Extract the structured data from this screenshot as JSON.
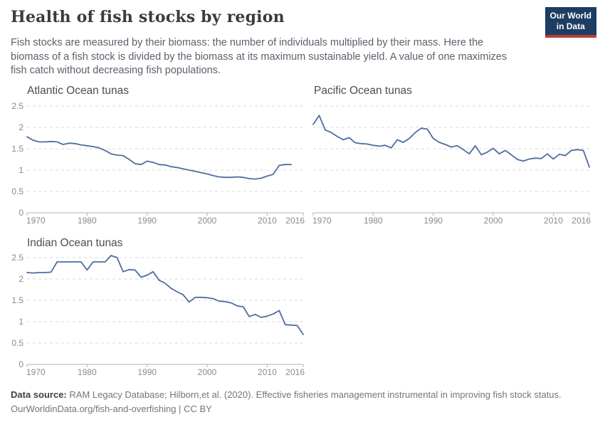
{
  "header": {
    "title": "Health of fish stocks by region",
    "subtitle_lines": [
      "Fish stocks are measured by their biomass: the number of individuals multiplied by their mass. Here the",
      "biomass of a fish stock is divided by the biomass at its maximum sustainable yield. A value of one maximizes",
      "fish catch without decreasing fish populations."
    ],
    "logo": {
      "lines": [
        "Our World",
        "in Data"
      ],
      "bg_color": "#1d3d63",
      "accent_color": "#bc3b31"
    }
  },
  "footer": {
    "source_label": "Data source:",
    "source_text": "RAM Legacy Database; Hilborn,et al. (2020). Effective fisheries management instrumental in improving fish stock status.",
    "url": "OurWorldinData.org/fish-and-overfishing",
    "divider": "|",
    "license": "CC BY"
  },
  "chart_data": [
    {
      "type": "line",
      "title": "Atlantic Ocean tunas",
      "xlabel": "",
      "ylabel": "",
      "xlim": [
        1970,
        2016
      ],
      "ylim": [
        0,
        2.5
      ],
      "x_ticks": [
        1970,
        1980,
        1990,
        2000,
        2010,
        2016
      ],
      "y_ticks": [
        0,
        0.5,
        1,
        1.5,
        2,
        2.5
      ],
      "show_y_labels": true,
      "grid": true,
      "line_color": "#4d6e9f",
      "x": [
        1970,
        1971,
        1972,
        1973,
        1974,
        1975,
        1976,
        1977,
        1978,
        1979,
        1980,
        1981,
        1982,
        1983,
        1984,
        1985,
        1986,
        1987,
        1988,
        1989,
        1990,
        1991,
        1992,
        1993,
        1994,
        1995,
        1996,
        1997,
        1998,
        1999,
        2000,
        2001,
        2002,
        2003,
        2004,
        2005,
        2006,
        2007,
        2008,
        2009,
        2010,
        2011,
        2012,
        2013,
        2014
      ],
      "values": [
        1.78,
        1.7,
        1.66,
        1.66,
        1.67,
        1.66,
        1.6,
        1.63,
        1.62,
        1.59,
        1.57,
        1.55,
        1.52,
        1.46,
        1.38,
        1.35,
        1.34,
        1.25,
        1.15,
        1.13,
        1.21,
        1.18,
        1.13,
        1.12,
        1.08,
        1.06,
        1.03,
        1.0,
        0.97,
        0.94,
        0.91,
        0.87,
        0.84,
        0.83,
        0.83,
        0.84,
        0.83,
        0.8,
        0.79,
        0.81,
        0.86,
        0.9,
        1.11,
        1.13,
        1.13
      ]
    },
    {
      "type": "line",
      "title": "Pacific Ocean tunas",
      "xlabel": "",
      "ylabel": "",
      "xlim": [
        1970,
        2016
      ],
      "ylim": [
        0,
        2.5
      ],
      "x_ticks": [
        1970,
        1980,
        1990,
        2000,
        2010,
        2016
      ],
      "y_ticks": [
        0,
        0.5,
        1,
        1.5,
        2,
        2.5
      ],
      "show_y_labels": false,
      "grid": true,
      "line_color": "#4d6e9f",
      "x": [
        1970,
        1971,
        1972,
        1973,
        1974,
        1975,
        1976,
        1977,
        1978,
        1979,
        1980,
        1981,
        1982,
        1983,
        1984,
        1985,
        1986,
        1987,
        1988,
        1989,
        1990,
        1991,
        1992,
        1993,
        1994,
        1995,
        1996,
        1997,
        1998,
        1999,
        2000,
        2001,
        2002,
        2003,
        2004,
        2005,
        2006,
        2007,
        2008,
        2009,
        2010,
        2011,
        2012,
        2013,
        2014,
        2015,
        2016
      ],
      "values": [
        2.07,
        2.28,
        1.94,
        1.88,
        1.79,
        1.71,
        1.76,
        1.64,
        1.62,
        1.61,
        1.58,
        1.56,
        1.58,
        1.52,
        1.71,
        1.65,
        1.74,
        1.88,
        1.98,
        1.96,
        1.74,
        1.65,
        1.6,
        1.54,
        1.57,
        1.48,
        1.38,
        1.57,
        1.36,
        1.42,
        1.51,
        1.38,
        1.46,
        1.36,
        1.25,
        1.21,
        1.26,
        1.28,
        1.27,
        1.38,
        1.26,
        1.37,
        1.34,
        1.46,
        1.48,
        1.46,
        1.07
      ]
    },
    {
      "type": "line",
      "title": "Indian Ocean tunas",
      "xlabel": "",
      "ylabel": "",
      "xlim": [
        1970,
        2016
      ],
      "ylim": [
        0,
        2.5
      ],
      "x_ticks": [
        1970,
        1980,
        1990,
        2000,
        2010,
        2016
      ],
      "y_ticks": [
        0,
        0.5,
        1,
        1.5,
        2,
        2.5
      ],
      "show_y_labels": true,
      "grid": true,
      "line_color": "#4d6e9f",
      "x": [
        1970,
        1971,
        1972,
        1973,
        1974,
        1975,
        1976,
        1977,
        1978,
        1979,
        1980,
        1981,
        1982,
        1983,
        1984,
        1985,
        1986,
        1987,
        1988,
        1989,
        1990,
        1991,
        1992,
        1993,
        1994,
        1995,
        1996,
        1997,
        1998,
        1999,
        2000,
        2001,
        2002,
        2003,
        2004,
        2005,
        2006,
        2007,
        2008,
        2009,
        2010,
        2011,
        2012,
        2013,
        2014,
        2015,
        2016
      ],
      "values": [
        2.15,
        2.14,
        2.15,
        2.15,
        2.16,
        2.4,
        2.4,
        2.4,
        2.4,
        2.4,
        2.21,
        2.4,
        2.4,
        2.4,
        2.55,
        2.5,
        2.17,
        2.22,
        2.21,
        2.04,
        2.09,
        2.17,
        1.97,
        1.9,
        1.78,
        1.7,
        1.63,
        1.46,
        1.57,
        1.57,
        1.56,
        1.54,
        1.48,
        1.47,
        1.44,
        1.37,
        1.35,
        1.12,
        1.17,
        1.1,
        1.13,
        1.18,
        1.26,
        0.93,
        0.92,
        0.91,
        0.7
      ]
    }
  ]
}
